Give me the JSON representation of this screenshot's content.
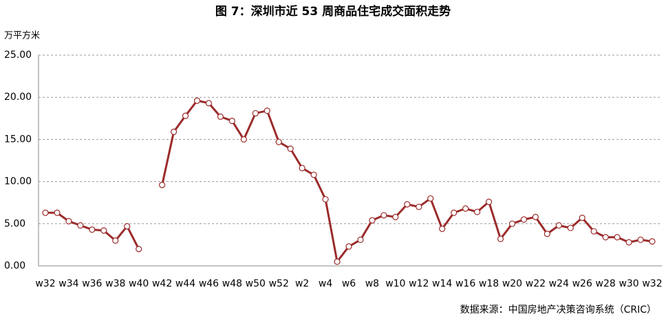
{
  "chart_data": {
    "type": "line",
    "title": "图 7：深圳市近 53 周商品住宅成交面积走势",
    "y_label": "万平方米",
    "source": "数据来源：中国房地产决策咨询系统（CRIC）",
    "categories": [
      "w32",
      null,
      "w34",
      null,
      "w36",
      null,
      "w38",
      null,
      "w40",
      null,
      "w42",
      null,
      "w44",
      null,
      "w46",
      null,
      "w48",
      null,
      "w50",
      null,
      "w52",
      null,
      "w2",
      null,
      "w4",
      null,
      "w6",
      null,
      "w8",
      null,
      "w10",
      null,
      "w12",
      null,
      "w14",
      null,
      "w16",
      null,
      "w18",
      null,
      "w20",
      null,
      "w22",
      null,
      "w24",
      null,
      "w26",
      null,
      "w28",
      null,
      "w30",
      null,
      "w32"
    ],
    "series": [
      {
        "color": "#9b2b2b",
        "values": [
          6.3,
          6.3,
          5.3,
          4.8,
          4.3,
          4.2,
          3.0,
          4.7,
          2.0,
          null,
          9.6,
          15.9,
          17.8,
          19.6,
          19.3,
          17.7,
          17.2,
          15.0,
          18.1,
          18.4,
          14.7,
          13.9,
          11.6,
          10.8,
          7.9,
          0.5,
          2.3,
          3.1,
          5.4,
          6.0,
          5.8,
          7.3,
          7.0,
          8.0,
          4.4,
          6.3,
          6.8,
          6.4,
          7.6,
          3.2,
          5.0,
          5.5,
          5.8,
          3.8,
          4.8,
          4.5,
          5.7,
          4.1,
          3.4,
          3.4,
          2.8,
          3.1,
          2.9
        ]
      }
    ],
    "ylim": [
      0,
      25
    ],
    "yticks": [
      {
        "value": 0,
        "label": "0.00"
      },
      {
        "value": 5,
        "label": "5.00"
      },
      {
        "value": 10,
        "label": "10.00"
      },
      {
        "value": 15,
        "label": "15.00"
      },
      {
        "value": 20,
        "label": "20.00"
      },
      {
        "value": 25,
        "label": "25.00"
      }
    ],
    "grid": true
  }
}
